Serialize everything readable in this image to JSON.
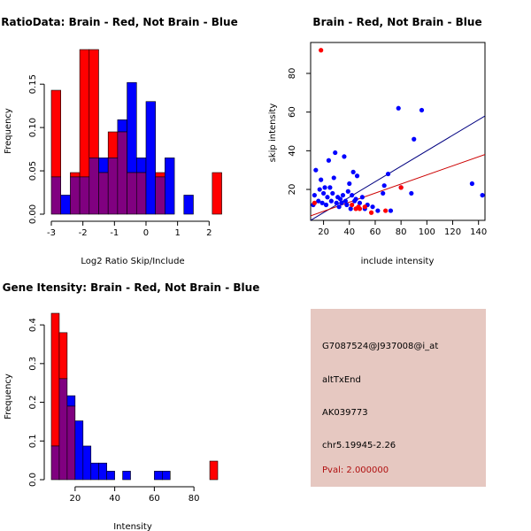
{
  "colors": {
    "brain": "#ff0000",
    "not_brain": "#0000ff",
    "overlap": "#800080",
    "info_bg": "#e6c8c1",
    "pval": "#b01010"
  },
  "chart_data": [
    {
      "type": "bar",
      "title": "RatioData: Brain - Red, Not Brain - Blue",
      "xlabel": "Log2 Ratio Skip/Include",
      "ylabel": "Frequency",
      "xlim": [
        -3,
        2.3
      ],
      "ylim": [
        0,
        0.19
      ],
      "xticks": [
        -3,
        -2,
        -1,
        0,
        1,
        2
      ],
      "yticks": [
        0.0,
        0.05,
        0.1,
        0.15
      ],
      "bin_edges": [
        -3.0,
        -2.7,
        -2.4,
        -2.1,
        -1.8,
        -1.5,
        -1.2,
        -0.9,
        -0.6,
        -0.3,
        0.0,
        0.3,
        0.6,
        0.9,
        1.2,
        1.5,
        1.8,
        2.1,
        2.4
      ],
      "series": [
        {
          "name": "Brain",
          "color": "red",
          "values": [
            0.143,
            0,
            0.048,
            0.19,
            0.19,
            0.048,
            0.095,
            0.095,
            0.048,
            0.048,
            0,
            0.048,
            0,
            0,
            0,
            0,
            0,
            0.048
          ]
        },
        {
          "name": "Not Brain",
          "color": "blue",
          "values": [
            0.043,
            0.022,
            0.043,
            0.043,
            0.065,
            0.065,
            0.065,
            0.109,
            0.152,
            0.065,
            0.13,
            0.043,
            0.065,
            0,
            0.022,
            0,
            0,
            0
          ]
        }
      ]
    },
    {
      "type": "scatter",
      "title": "Brain - Red, Not Brain - Blue",
      "xlabel": "include intensity",
      "ylabel": "skip intensity",
      "xlim": [
        10,
        145
      ],
      "ylim": [
        4,
        96
      ],
      "xticks": [
        20,
        40,
        60,
        80,
        100,
        120,
        140
      ],
      "yticks": [
        20,
        40,
        60,
        80
      ],
      "series": [
        {
          "name": "Not Brain",
          "color": "blue",
          "fit": {
            "intercept": 0.0,
            "slope": 0.4
          },
          "points": [
            [
              12,
              12
            ],
            [
              13,
              17
            ],
            [
              14,
              30
            ],
            [
              16,
              14
            ],
            [
              17,
              20
            ],
            [
              18,
              25
            ],
            [
              19,
              13
            ],
            [
              20,
              18
            ],
            [
              21,
              21
            ],
            [
              22,
              12
            ],
            [
              23,
              16
            ],
            [
              24,
              35
            ],
            [
              25,
              21
            ],
            [
              26,
              14
            ],
            [
              27,
              18
            ],
            [
              28,
              26
            ],
            [
              29,
              39
            ],
            [
              30,
              13
            ],
            [
              31,
              16
            ],
            [
              32,
              11
            ],
            [
              33,
              15
            ],
            [
              34,
              13
            ],
            [
              35,
              17
            ],
            [
              36,
              37
            ],
            [
              37,
              14
            ],
            [
              38,
              12
            ],
            [
              39,
              19
            ],
            [
              40,
              23
            ],
            [
              41,
              10
            ],
            [
              42,
              17
            ],
            [
              43,
              29
            ],
            [
              44,
              14
            ],
            [
              45,
              15
            ],
            [
              46,
              27
            ],
            [
              48,
              13
            ],
            [
              50,
              16
            ],
            [
              52,
              10
            ],
            [
              54,
              12
            ],
            [
              58,
              11
            ],
            [
              62,
              9
            ],
            [
              66,
              18
            ],
            [
              67,
              22
            ],
            [
              70,
              28
            ],
            [
              72,
              9
            ],
            [
              78,
              62
            ],
            [
              80,
              21
            ],
            [
              88,
              18
            ],
            [
              90,
              46
            ],
            [
              96,
              61
            ],
            [
              135,
              23
            ],
            [
              143,
              17
            ]
          ]
        },
        {
          "name": "Brain",
          "color": "red",
          "fit": {
            "intercept": 4.0,
            "slope": 0.235
          },
          "points": [
            [
              18,
              92
            ],
            [
              13,
              13
            ],
            [
              42,
              12
            ],
            [
              45,
              10
            ],
            [
              47,
              11
            ],
            [
              48,
              10
            ],
            [
              52,
              11
            ],
            [
              57,
              8
            ],
            [
              68,
              9
            ],
            [
              80,
              21
            ]
          ]
        }
      ]
    },
    {
      "type": "bar",
      "title": "Gene Itensity: Brain - Red, Not Brain - Blue",
      "xlabel": "Intensity",
      "ylabel": "Frequency",
      "xlim": [
        8,
        92
      ],
      "ylim": [
        0,
        0.43
      ],
      "xticks": [
        20,
        40,
        60,
        80
      ],
      "yticks": [
        0.0,
        0.1,
        0.2,
        0.3,
        0.4
      ],
      "bin_edges": [
        8,
        12,
        16,
        20,
        24,
        28,
        32,
        36,
        40,
        44,
        48,
        52,
        56,
        60,
        64,
        68,
        72,
        76,
        80,
        84,
        88,
        92
      ],
      "series": [
        {
          "name": "Brain",
          "color": "red",
          "values": [
            0.43,
            0.38,
            0.19,
            0,
            0,
            0,
            0,
            0,
            0,
            0,
            0,
            0,
            0,
            0,
            0,
            0,
            0,
            0,
            0,
            0,
            0.048
          ]
        },
        {
          "name": "Not Brain",
          "color": "blue",
          "values": [
            0.087,
            0.261,
            0.217,
            0.152,
            0.087,
            0.043,
            0.043,
            0.022,
            0,
            0.022,
            0,
            0,
            0,
            0.022,
            0.022,
            0,
            0,
            0,
            0,
            0,
            0
          ]
        }
      ]
    }
  ],
  "info": {
    "probe_id": "G7087524@J937008@i_at",
    "event_type": "altTxEnd",
    "accession": "AK039773",
    "location": "chr5.19945-2.26",
    "pval": "Pval: 2.000000"
  }
}
